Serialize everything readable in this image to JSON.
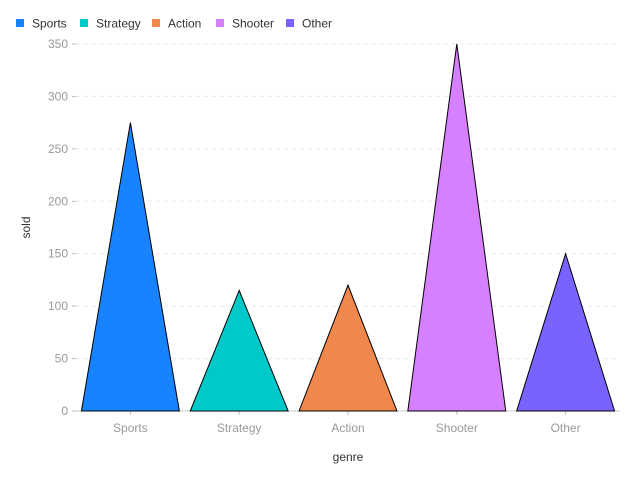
{
  "chart_data": {
    "type": "bar",
    "mark_shape": "triangle",
    "categories": [
      "Sports",
      "Strategy",
      "Action",
      "Shooter",
      "Other"
    ],
    "values": [
      275,
      115,
      120,
      350,
      150
    ],
    "colors": [
      "#1783ff",
      "#00c9c9",
      "#f0884d",
      "#d580ff",
      "#7863ff"
    ],
    "xlabel": "genre",
    "ylabel": "sold",
    "ylim": [
      0,
      350
    ],
    "yticks": [
      0,
      50,
      100,
      150,
      200,
      250,
      300,
      350
    ],
    "grid": true,
    "legend": {
      "position": "top-left",
      "entries": [
        "Sports",
        "Strategy",
        "Action",
        "Shooter",
        "Other"
      ]
    }
  }
}
